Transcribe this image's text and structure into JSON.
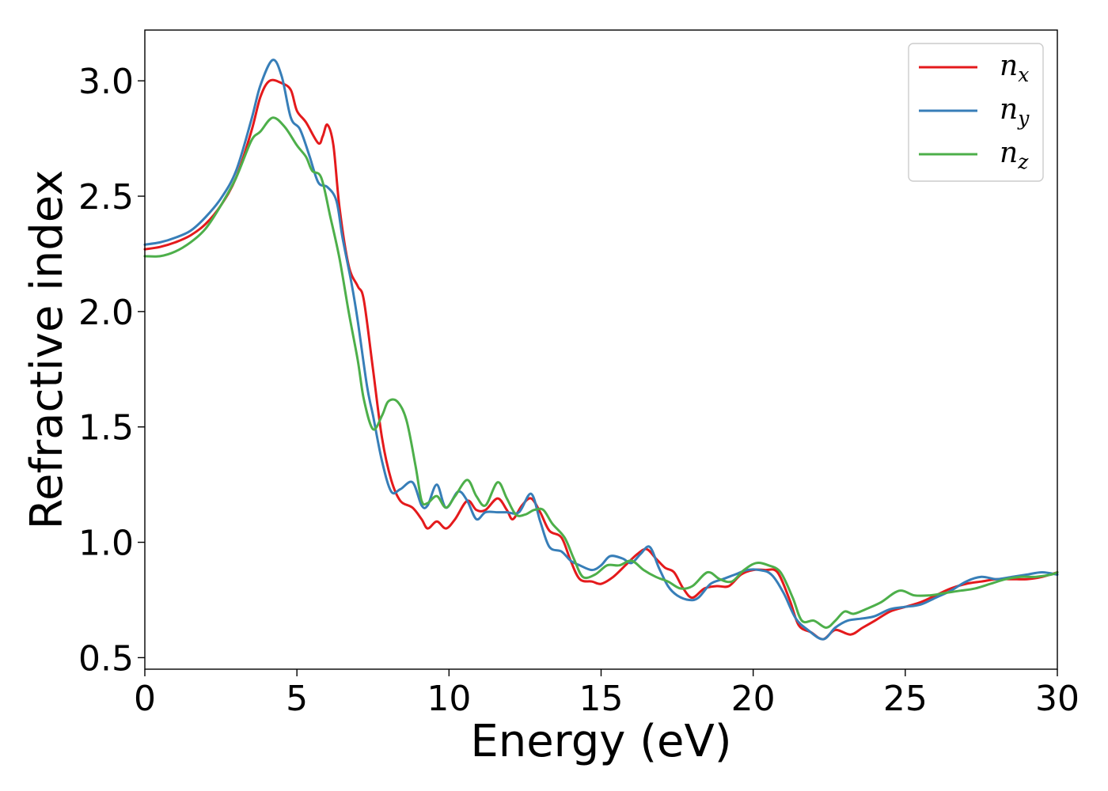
{
  "chart_data": {
    "type": "line",
    "xlabel": "Energy (eV)",
    "ylabel": "Refractive index",
    "xlim": [
      0,
      30
    ],
    "ylim": [
      0.45,
      3.22
    ],
    "xticks": [
      {
        "value": 0,
        "label": "0"
      },
      {
        "value": 5,
        "label": "5"
      },
      {
        "value": 10,
        "label": "10"
      },
      {
        "value": 15,
        "label": "15"
      },
      {
        "value": 20,
        "label": "20"
      },
      {
        "value": 25,
        "label": "25"
      },
      {
        "value": 30,
        "label": "30"
      }
    ],
    "yticks": [
      {
        "value": 0.5,
        "label": "0.5"
      },
      {
        "value": 1.0,
        "label": "1.0"
      },
      {
        "value": 1.5,
        "label": "1.5"
      },
      {
        "value": 2.0,
        "label": "2.0"
      },
      {
        "value": 2.5,
        "label": "2.5"
      },
      {
        "value": 3.0,
        "label": "3.0"
      }
    ],
    "grid": false,
    "legend_position": "top-right",
    "series": [
      {
        "name": "n_x",
        "base": "n",
        "subscript": "x",
        "color": "#e41a1c",
        "points": [
          [
            0,
            2.27
          ],
          [
            0.5,
            2.28
          ],
          [
            1,
            2.3
          ],
          [
            1.5,
            2.33
          ],
          [
            2,
            2.38
          ],
          [
            2.5,
            2.46
          ],
          [
            3,
            2.58
          ],
          [
            3.5,
            2.78
          ],
          [
            3.8,
            2.93
          ],
          [
            4.1,
            3.0
          ],
          [
            4.5,
            2.99
          ],
          [
            4.8,
            2.96
          ],
          [
            5.0,
            2.87
          ],
          [
            5.3,
            2.82
          ],
          [
            5.7,
            2.73
          ],
          [
            5.85,
            2.76
          ],
          [
            6.0,
            2.81
          ],
          [
            6.2,
            2.72
          ],
          [
            6.4,
            2.45
          ],
          [
            6.7,
            2.2
          ],
          [
            7.0,
            2.11
          ],
          [
            7.2,
            2.05
          ],
          [
            7.5,
            1.75
          ],
          [
            7.8,
            1.45
          ],
          [
            8.1,
            1.27
          ],
          [
            8.4,
            1.18
          ],
          [
            8.8,
            1.15
          ],
          [
            9.1,
            1.1
          ],
          [
            9.3,
            1.06
          ],
          [
            9.6,
            1.09
          ],
          [
            9.9,
            1.06
          ],
          [
            10.2,
            1.1
          ],
          [
            10.6,
            1.18
          ],
          [
            10.9,
            1.14
          ],
          [
            11.2,
            1.14
          ],
          [
            11.6,
            1.19
          ],
          [
            11.9,
            1.14
          ],
          [
            12.1,
            1.1
          ],
          [
            12.4,
            1.16
          ],
          [
            12.7,
            1.19
          ],
          [
            13.0,
            1.13
          ],
          [
            13.3,
            1.05
          ],
          [
            13.7,
            1.02
          ],
          [
            14.0,
            0.92
          ],
          [
            14.3,
            0.84
          ],
          [
            14.7,
            0.83
          ],
          [
            15.0,
            0.82
          ],
          [
            15.4,
            0.85
          ],
          [
            15.8,
            0.9
          ],
          [
            16.2,
            0.95
          ],
          [
            16.5,
            0.97
          ],
          [
            16.8,
            0.93
          ],
          [
            17.1,
            0.89
          ],
          [
            17.4,
            0.87
          ],
          [
            17.7,
            0.8
          ],
          [
            18.0,
            0.76
          ],
          [
            18.4,
            0.8
          ],
          [
            18.8,
            0.81
          ],
          [
            19.2,
            0.81
          ],
          [
            19.6,
            0.86
          ],
          [
            20.0,
            0.88
          ],
          [
            20.4,
            0.88
          ],
          [
            20.8,
            0.87
          ],
          [
            21.2,
            0.75
          ],
          [
            21.5,
            0.64
          ],
          [
            21.9,
            0.61
          ],
          [
            22.3,
            0.58
          ],
          [
            22.7,
            0.62
          ],
          [
            23.2,
            0.6
          ],
          [
            23.6,
            0.63
          ],
          [
            24.0,
            0.66
          ],
          [
            24.5,
            0.7
          ],
          [
            25.0,
            0.72
          ],
          [
            25.5,
            0.74
          ],
          [
            26.0,
            0.77
          ],
          [
            26.5,
            0.8
          ],
          [
            27.0,
            0.82
          ],
          [
            27.5,
            0.83
          ],
          [
            28.0,
            0.84
          ],
          [
            28.5,
            0.84
          ],
          [
            29.0,
            0.84
          ],
          [
            29.5,
            0.85
          ],
          [
            30,
            0.87
          ]
        ]
      },
      {
        "name": "n_y",
        "base": "n",
        "subscript": "y",
        "color": "#377eb8",
        "points": [
          [
            0,
            2.29
          ],
          [
            0.5,
            2.3
          ],
          [
            1,
            2.32
          ],
          [
            1.5,
            2.35
          ],
          [
            2,
            2.41
          ],
          [
            2.5,
            2.49
          ],
          [
            3,
            2.61
          ],
          [
            3.5,
            2.83
          ],
          [
            3.8,
            2.98
          ],
          [
            4.2,
            3.09
          ],
          [
            4.5,
            3.02
          ],
          [
            4.8,
            2.84
          ],
          [
            5.1,
            2.79
          ],
          [
            5.4,
            2.68
          ],
          [
            5.7,
            2.56
          ],
          [
            6.0,
            2.54
          ],
          [
            6.3,
            2.48
          ],
          [
            6.5,
            2.32
          ],
          [
            6.8,
            2.12
          ],
          [
            7.0,
            1.96
          ],
          [
            7.3,
            1.68
          ],
          [
            7.5,
            1.55
          ],
          [
            7.8,
            1.35
          ],
          [
            8.1,
            1.22
          ],
          [
            8.4,
            1.23
          ],
          [
            8.8,
            1.26
          ],
          [
            9.1,
            1.16
          ],
          [
            9.3,
            1.16
          ],
          [
            9.6,
            1.25
          ],
          [
            9.9,
            1.15
          ],
          [
            10.3,
            1.22
          ],
          [
            10.6,
            1.18
          ],
          [
            10.9,
            1.1
          ],
          [
            11.2,
            1.13
          ],
          [
            11.6,
            1.13
          ],
          [
            11.9,
            1.13
          ],
          [
            12.3,
            1.13
          ],
          [
            12.7,
            1.21
          ],
          [
            13.0,
            1.09
          ],
          [
            13.3,
            0.98
          ],
          [
            13.7,
            0.96
          ],
          [
            14.0,
            0.92
          ],
          [
            14.3,
            0.9
          ],
          [
            14.7,
            0.88
          ],
          [
            15.0,
            0.9
          ],
          [
            15.3,
            0.94
          ],
          [
            15.7,
            0.93
          ],
          [
            16.0,
            0.91
          ],
          [
            16.3,
            0.95
          ],
          [
            16.6,
            0.98
          ],
          [
            16.9,
            0.89
          ],
          [
            17.2,
            0.81
          ],
          [
            17.5,
            0.77
          ],
          [
            17.9,
            0.75
          ],
          [
            18.2,
            0.76
          ],
          [
            18.6,
            0.82
          ],
          [
            19.0,
            0.84
          ],
          [
            19.4,
            0.86
          ],
          [
            19.8,
            0.88
          ],
          [
            20.2,
            0.88
          ],
          [
            20.6,
            0.86
          ],
          [
            21.0,
            0.78
          ],
          [
            21.4,
            0.67
          ],
          [
            21.8,
            0.62
          ],
          [
            22.3,
            0.58
          ],
          [
            22.7,
            0.63
          ],
          [
            23.1,
            0.66
          ],
          [
            23.6,
            0.67
          ],
          [
            24.0,
            0.68
          ],
          [
            24.5,
            0.71
          ],
          [
            25.0,
            0.72
          ],
          [
            25.5,
            0.73
          ],
          [
            26.0,
            0.76
          ],
          [
            26.5,
            0.79
          ],
          [
            27.0,
            0.83
          ],
          [
            27.5,
            0.85
          ],
          [
            28.0,
            0.84
          ],
          [
            28.5,
            0.85
          ],
          [
            29.0,
            0.86
          ],
          [
            29.5,
            0.87
          ],
          [
            30,
            0.86
          ]
        ]
      },
      {
        "name": "n_z",
        "base": "n",
        "subscript": "z",
        "color": "#4daf4a",
        "points": [
          [
            0,
            2.24
          ],
          [
            0.5,
            2.24
          ],
          [
            1,
            2.26
          ],
          [
            1.5,
            2.3
          ],
          [
            2,
            2.36
          ],
          [
            2.5,
            2.46
          ],
          [
            3,
            2.58
          ],
          [
            3.5,
            2.74
          ],
          [
            3.8,
            2.78
          ],
          [
            4.2,
            2.84
          ],
          [
            4.6,
            2.8
          ],
          [
            5.0,
            2.72
          ],
          [
            5.3,
            2.67
          ],
          [
            5.5,
            2.61
          ],
          [
            5.8,
            2.58
          ],
          [
            6.1,
            2.41
          ],
          [
            6.4,
            2.23
          ],
          [
            6.7,
            2.0
          ],
          [
            7.0,
            1.79
          ],
          [
            7.2,
            1.62
          ],
          [
            7.5,
            1.49
          ],
          [
            7.8,
            1.55
          ],
          [
            8.0,
            1.61
          ],
          [
            8.3,
            1.61
          ],
          [
            8.6,
            1.53
          ],
          [
            8.9,
            1.33
          ],
          [
            9.1,
            1.18
          ],
          [
            9.3,
            1.17
          ],
          [
            9.6,
            1.2
          ],
          [
            9.9,
            1.15
          ],
          [
            10.2,
            1.2
          ],
          [
            10.6,
            1.27
          ],
          [
            10.9,
            1.2
          ],
          [
            11.2,
            1.16
          ],
          [
            11.6,
            1.26
          ],
          [
            11.9,
            1.19
          ],
          [
            12.2,
            1.12
          ],
          [
            12.5,
            1.12
          ],
          [
            12.8,
            1.14
          ],
          [
            13.1,
            1.14
          ],
          [
            13.4,
            1.08
          ],
          [
            13.8,
            1.02
          ],
          [
            14.1,
            0.93
          ],
          [
            14.4,
            0.85
          ],
          [
            14.8,
            0.86
          ],
          [
            15.2,
            0.9
          ],
          [
            15.6,
            0.9
          ],
          [
            16.0,
            0.92
          ],
          [
            16.4,
            0.88
          ],
          [
            16.8,
            0.85
          ],
          [
            17.2,
            0.83
          ],
          [
            17.6,
            0.8
          ],
          [
            18.0,
            0.81
          ],
          [
            18.5,
            0.87
          ],
          [
            18.9,
            0.84
          ],
          [
            19.3,
            0.83
          ],
          [
            19.7,
            0.88
          ],
          [
            20.1,
            0.91
          ],
          [
            20.5,
            0.9
          ],
          [
            20.9,
            0.87
          ],
          [
            21.3,
            0.76
          ],
          [
            21.6,
            0.66
          ],
          [
            22.0,
            0.66
          ],
          [
            22.4,
            0.63
          ],
          [
            22.7,
            0.66
          ],
          [
            23.0,
            0.7
          ],
          [
            23.3,
            0.69
          ],
          [
            23.7,
            0.71
          ],
          [
            24.2,
            0.74
          ],
          [
            24.8,
            0.79
          ],
          [
            25.3,
            0.77
          ],
          [
            25.8,
            0.77
          ],
          [
            26.3,
            0.78
          ],
          [
            26.8,
            0.79
          ],
          [
            27.3,
            0.8
          ],
          [
            27.8,
            0.82
          ],
          [
            28.3,
            0.84
          ],
          [
            28.8,
            0.85
          ],
          [
            29.3,
            0.85
          ],
          [
            29.8,
            0.86
          ],
          [
            30,
            0.87
          ]
        ]
      }
    ]
  }
}
